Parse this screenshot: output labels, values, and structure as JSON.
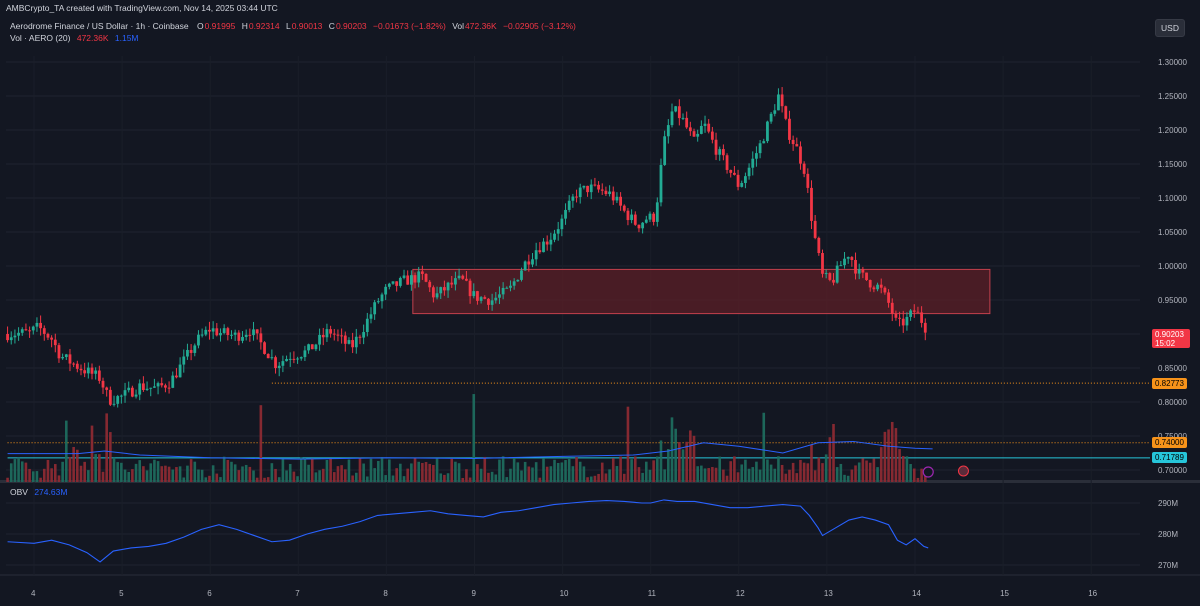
{
  "header": {
    "attribution": "AMBCrypto_TA created with TradingView.com, Nov 14, 2025 03:44 UTC"
  },
  "legend": {
    "symbol": "Aerodrome Finance / US Dollar · 1h · Coinbase",
    "o_label": "O",
    "o_value": "0.91995",
    "h_label": "H",
    "h_value": "0.92314",
    "l_label": "L",
    "l_value": "0.90013",
    "c_label": "C",
    "c_value": "0.90203",
    "change": "−0.01673 (−1.82%)",
    "vol_label": "Vol",
    "vol_value": "472.36K",
    "vol_change": "−0.02905 (−3.12%)",
    "vol_indicator_label": "Vol · AERO (20)",
    "vol_indicator_value": "472.36K",
    "vol_ma_value": "1.15M",
    "obv_label": "OBV",
    "obv_value": "274.63M"
  },
  "currency_button": "USD",
  "price_tags": {
    "current_price": "0.90203",
    "countdown": "15:02",
    "support_1": "0.82773",
    "support_2": "0.74000",
    "support_3": "0.71789"
  },
  "colors": {
    "background": "#131722",
    "up": "#22ab94",
    "down": "#f23645",
    "zone": "#5c1f27",
    "ma_line": "#2962ff",
    "support_orange": "#f7931a",
    "support_cyan": "#26c6da"
  },
  "chart_data": {
    "type": "candlestick",
    "interval": "1h",
    "price_axis": {
      "ticks": [
        "1.30000",
        "1.25000",
        "1.20000",
        "1.15000",
        "1.10000",
        "1.05000",
        "1.00000",
        "0.95000",
        "0.90000",
        "0.85000",
        "0.80000",
        "0.75000",
        "0.70000"
      ],
      "ylim": [
        0.685,
        1.325
      ]
    },
    "obv_axis": {
      "ticks": [
        "290M",
        "280M",
        "270M"
      ],
      "ylim": [
        266,
        296
      ]
    },
    "x_axis": {
      "ticks": [
        "4",
        "5",
        "6",
        "7",
        "8",
        "9",
        "10",
        "11",
        "12",
        "13",
        "14",
        "15",
        "16"
      ]
    },
    "resistance_zone": {
      "from_day": 8.3,
      "to_day": 14.85,
      "low": 0.93,
      "high": 0.995
    },
    "support_lines": [
      {
        "value": 0.82773,
        "from_day": 6.7,
        "style": "dotted",
        "color": "orange"
      },
      {
        "value": 0.74,
        "from_day": 3.7,
        "style": "dotted",
        "color": "orange"
      },
      {
        "value": 0.71789,
        "from_day": 3.7,
        "style": "solid",
        "color": "cyan"
      }
    ],
    "price_path": [
      [
        3.7,
        0.9
      ],
      [
        3.95,
        0.902
      ],
      [
        4.05,
        0.91
      ],
      [
        4.2,
        0.893
      ],
      [
        4.3,
        0.868
      ],
      [
        4.5,
        0.852
      ],
      [
        4.75,
        0.835
      ],
      [
        4.85,
        0.803
      ],
      [
        5.0,
        0.808
      ],
      [
        5.2,
        0.823
      ],
      [
        5.4,
        0.82
      ],
      [
        5.55,
        0.83
      ],
      [
        5.7,
        0.86
      ],
      [
        5.85,
        0.89
      ],
      [
        6.0,
        0.908
      ],
      [
        6.1,
        0.902
      ],
      [
        6.3,
        0.897
      ],
      [
        6.45,
        0.906
      ],
      [
        6.6,
        0.882
      ],
      [
        6.75,
        0.855
      ],
      [
        6.9,
        0.868
      ],
      [
        7.1,
        0.874
      ],
      [
        7.25,
        0.892
      ],
      [
        7.35,
        0.905
      ],
      [
        7.5,
        0.89
      ],
      [
        7.6,
        0.88
      ],
      [
        7.7,
        0.9
      ],
      [
        7.9,
        0.948
      ],
      [
        8.0,
        0.965
      ],
      [
        8.2,
        0.978
      ],
      [
        8.4,
        0.985
      ],
      [
        8.55,
        0.955
      ],
      [
        8.7,
        0.97
      ],
      [
        8.85,
        0.98
      ],
      [
        9.0,
        0.955
      ],
      [
        9.2,
        0.95
      ],
      [
        9.4,
        0.965
      ],
      [
        9.55,
        1.0
      ],
      [
        9.7,
        1.025
      ],
      [
        9.85,
        1.04
      ],
      [
        10.0,
        1.068
      ],
      [
        10.15,
        1.107
      ],
      [
        10.3,
        1.115
      ],
      [
        10.45,
        1.11
      ],
      [
        10.55,
        1.105
      ],
      [
        10.7,
        1.08
      ],
      [
        10.85,
        1.06
      ],
      [
        10.95,
        1.07
      ],
      [
        11.05,
        1.072
      ],
      [
        11.15,
        1.18
      ],
      [
        11.25,
        1.23
      ],
      [
        11.35,
        1.218
      ],
      [
        11.5,
        1.18
      ],
      [
        11.6,
        1.21
      ],
      [
        11.75,
        1.17
      ],
      [
        11.9,
        1.14
      ],
      [
        12.0,
        1.118
      ],
      [
        12.1,
        1.14
      ],
      [
        12.25,
        1.18
      ],
      [
        12.35,
        1.215
      ],
      [
        12.45,
        1.25
      ],
      [
        12.55,
        1.2
      ],
      [
        12.65,
        1.175
      ],
      [
        12.75,
        1.14
      ],
      [
        12.85,
        1.05
      ],
      [
        12.95,
        0.985
      ],
      [
        13.05,
        0.975
      ],
      [
        13.15,
        1.0
      ],
      [
        13.25,
        1.02
      ],
      [
        13.35,
        0.99
      ],
      [
        13.5,
        0.975
      ],
      [
        13.6,
        0.968
      ],
      [
        13.7,
        0.945
      ],
      [
        13.8,
        0.912
      ],
      [
        13.9,
        0.92
      ],
      [
        14.0,
        0.935
      ],
      [
        14.1,
        0.915
      ],
      [
        14.15,
        0.902
      ]
    ],
    "obv_path": [
      [
        3.7,
        277.5
      ],
      [
        4.0,
        277.0
      ],
      [
        4.2,
        278.0
      ],
      [
        4.4,
        276.5
      ],
      [
        4.6,
        274.0
      ],
      [
        4.75,
        271.0
      ],
      [
        4.9,
        274.5
      ],
      [
        5.1,
        275.5
      ],
      [
        5.3,
        276.0
      ],
      [
        5.5,
        277.0
      ],
      [
        5.7,
        279.0
      ],
      [
        5.9,
        281.5
      ],
      [
        6.1,
        283.0
      ],
      [
        6.3,
        281.5
      ],
      [
        6.5,
        279.5
      ],
      [
        6.7,
        277.5
      ],
      [
        6.9,
        278.0
      ],
      [
        7.1,
        280.0
      ],
      [
        7.3,
        281.5
      ],
      [
        7.5,
        282.5
      ],
      [
        7.7,
        284.0
      ],
      [
        7.9,
        286.0
      ],
      [
        8.1,
        286.5
      ],
      [
        8.3,
        287.0
      ],
      [
        8.5,
        287.5
      ],
      [
        8.7,
        286.5
      ],
      [
        8.9,
        286.0
      ],
      [
        9.1,
        285.5
      ],
      [
        9.3,
        287.0
      ],
      [
        9.5,
        287.5
      ],
      [
        9.7,
        288.5
      ],
      [
        9.9,
        289.5
      ],
      [
        10.1,
        290.0
      ],
      [
        10.3,
        290.5
      ],
      [
        10.5,
        290.8
      ],
      [
        10.7,
        290.5
      ],
      [
        10.9,
        290.0
      ],
      [
        11.0,
        290.0
      ],
      [
        11.15,
        291.0
      ],
      [
        11.3,
        290.5
      ],
      [
        11.5,
        290.5
      ],
      [
        11.7,
        289.5
      ],
      [
        11.9,
        288.5
      ],
      [
        12.1,
        288.5
      ],
      [
        12.3,
        289.0
      ],
      [
        12.5,
        289.5
      ],
      [
        12.7,
        289.0
      ],
      [
        12.8,
        286.0
      ],
      [
        12.9,
        282.0
      ],
      [
        12.95,
        279.5
      ],
      [
        13.1,
        282.0
      ],
      [
        13.25,
        284.5
      ],
      [
        13.4,
        285.5
      ],
      [
        13.55,
        284.5
      ],
      [
        13.7,
        283.0
      ],
      [
        13.8,
        278.0
      ],
      [
        13.9,
        276.5
      ],
      [
        14.0,
        278.5
      ],
      [
        14.1,
        276.0
      ],
      [
        14.15,
        275.5
      ]
    ],
    "volume_ma": [
      [
        3.7,
        0.724
      ],
      [
        4.5,
        0.724
      ],
      [
        4.8,
        0.728
      ],
      [
        5.2,
        0.722
      ],
      [
        6.0,
        0.718
      ],
      [
        7.0,
        0.716
      ],
      [
        8.0,
        0.718
      ],
      [
        9.0,
        0.717
      ],
      [
        10.0,
        0.72
      ],
      [
        10.8,
        0.722
      ],
      [
        11.2,
        0.728
      ],
      [
        11.6,
        0.74
      ],
      [
        12.0,
        0.735
      ],
      [
        12.5,
        0.725
      ],
      [
        12.9,
        0.74
      ],
      [
        13.3,
        0.742
      ],
      [
        13.7,
        0.735
      ],
      [
        14.0,
        0.732
      ],
      [
        14.2,
        0.731
      ]
    ]
  }
}
